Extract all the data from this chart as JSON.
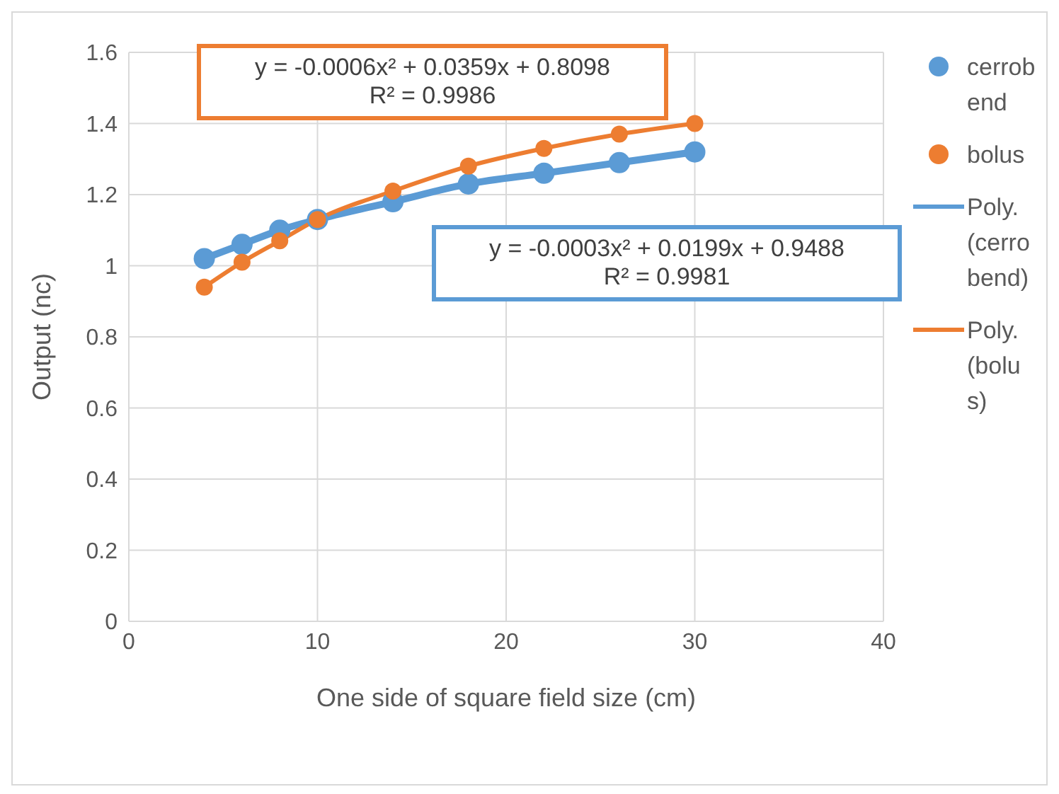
{
  "chart_data": {
    "type": "scatter",
    "xlabel": "One side of square field size (cm)",
    "ylabel": "Output (nc)",
    "xlim": [
      0,
      40
    ],
    "xticks": [
      0,
      10,
      20,
      30,
      40
    ],
    "ylim": [
      0,
      1.6
    ],
    "yticks": [
      0,
      0.2,
      0.4,
      0.6,
      0.8,
      1,
      1.2,
      1.4,
      1.6
    ],
    "grid": true,
    "legend": "right",
    "marker": "circle",
    "x": [
      4,
      6,
      8,
      10,
      14,
      18,
      22,
      26,
      30
    ],
    "series": [
      {
        "name": "cerrobend",
        "color": "#5b9bd5",
        "values": [
          1.02,
          1.06,
          1.1,
          1.13,
          1.18,
          1.23,
          1.26,
          1.29,
          1.32
        ]
      },
      {
        "name": "bolus",
        "color": "#ed7d31",
        "values": [
          0.94,
          1.01,
          1.07,
          1.13,
          1.21,
          1.28,
          1.33,
          1.37,
          1.4
        ]
      },
      {
        "name": "Poly. (cerrobend)",
        "type": "line",
        "marker": "none",
        "color": "#5b9bd5",
        "values": [
          1.02,
          1.06,
          1.1,
          1.13,
          1.18,
          1.23,
          1.26,
          1.29,
          1.32
        ]
      },
      {
        "name": "Poly. (bolus)",
        "type": "line",
        "marker": "none",
        "color": "#ed7d31",
        "values": [
          0.94,
          1.01,
          1.07,
          1.13,
          1.21,
          1.28,
          1.33,
          1.37,
          1.4
        ]
      }
    ],
    "annotations": [
      "y = -0.0006x² + 0.0359x + 0.8098\nR² = 0.9986",
      "y = -0.0003x² + 0.0199x + 0.9488\nR² = 0.9981"
    ]
  }
}
